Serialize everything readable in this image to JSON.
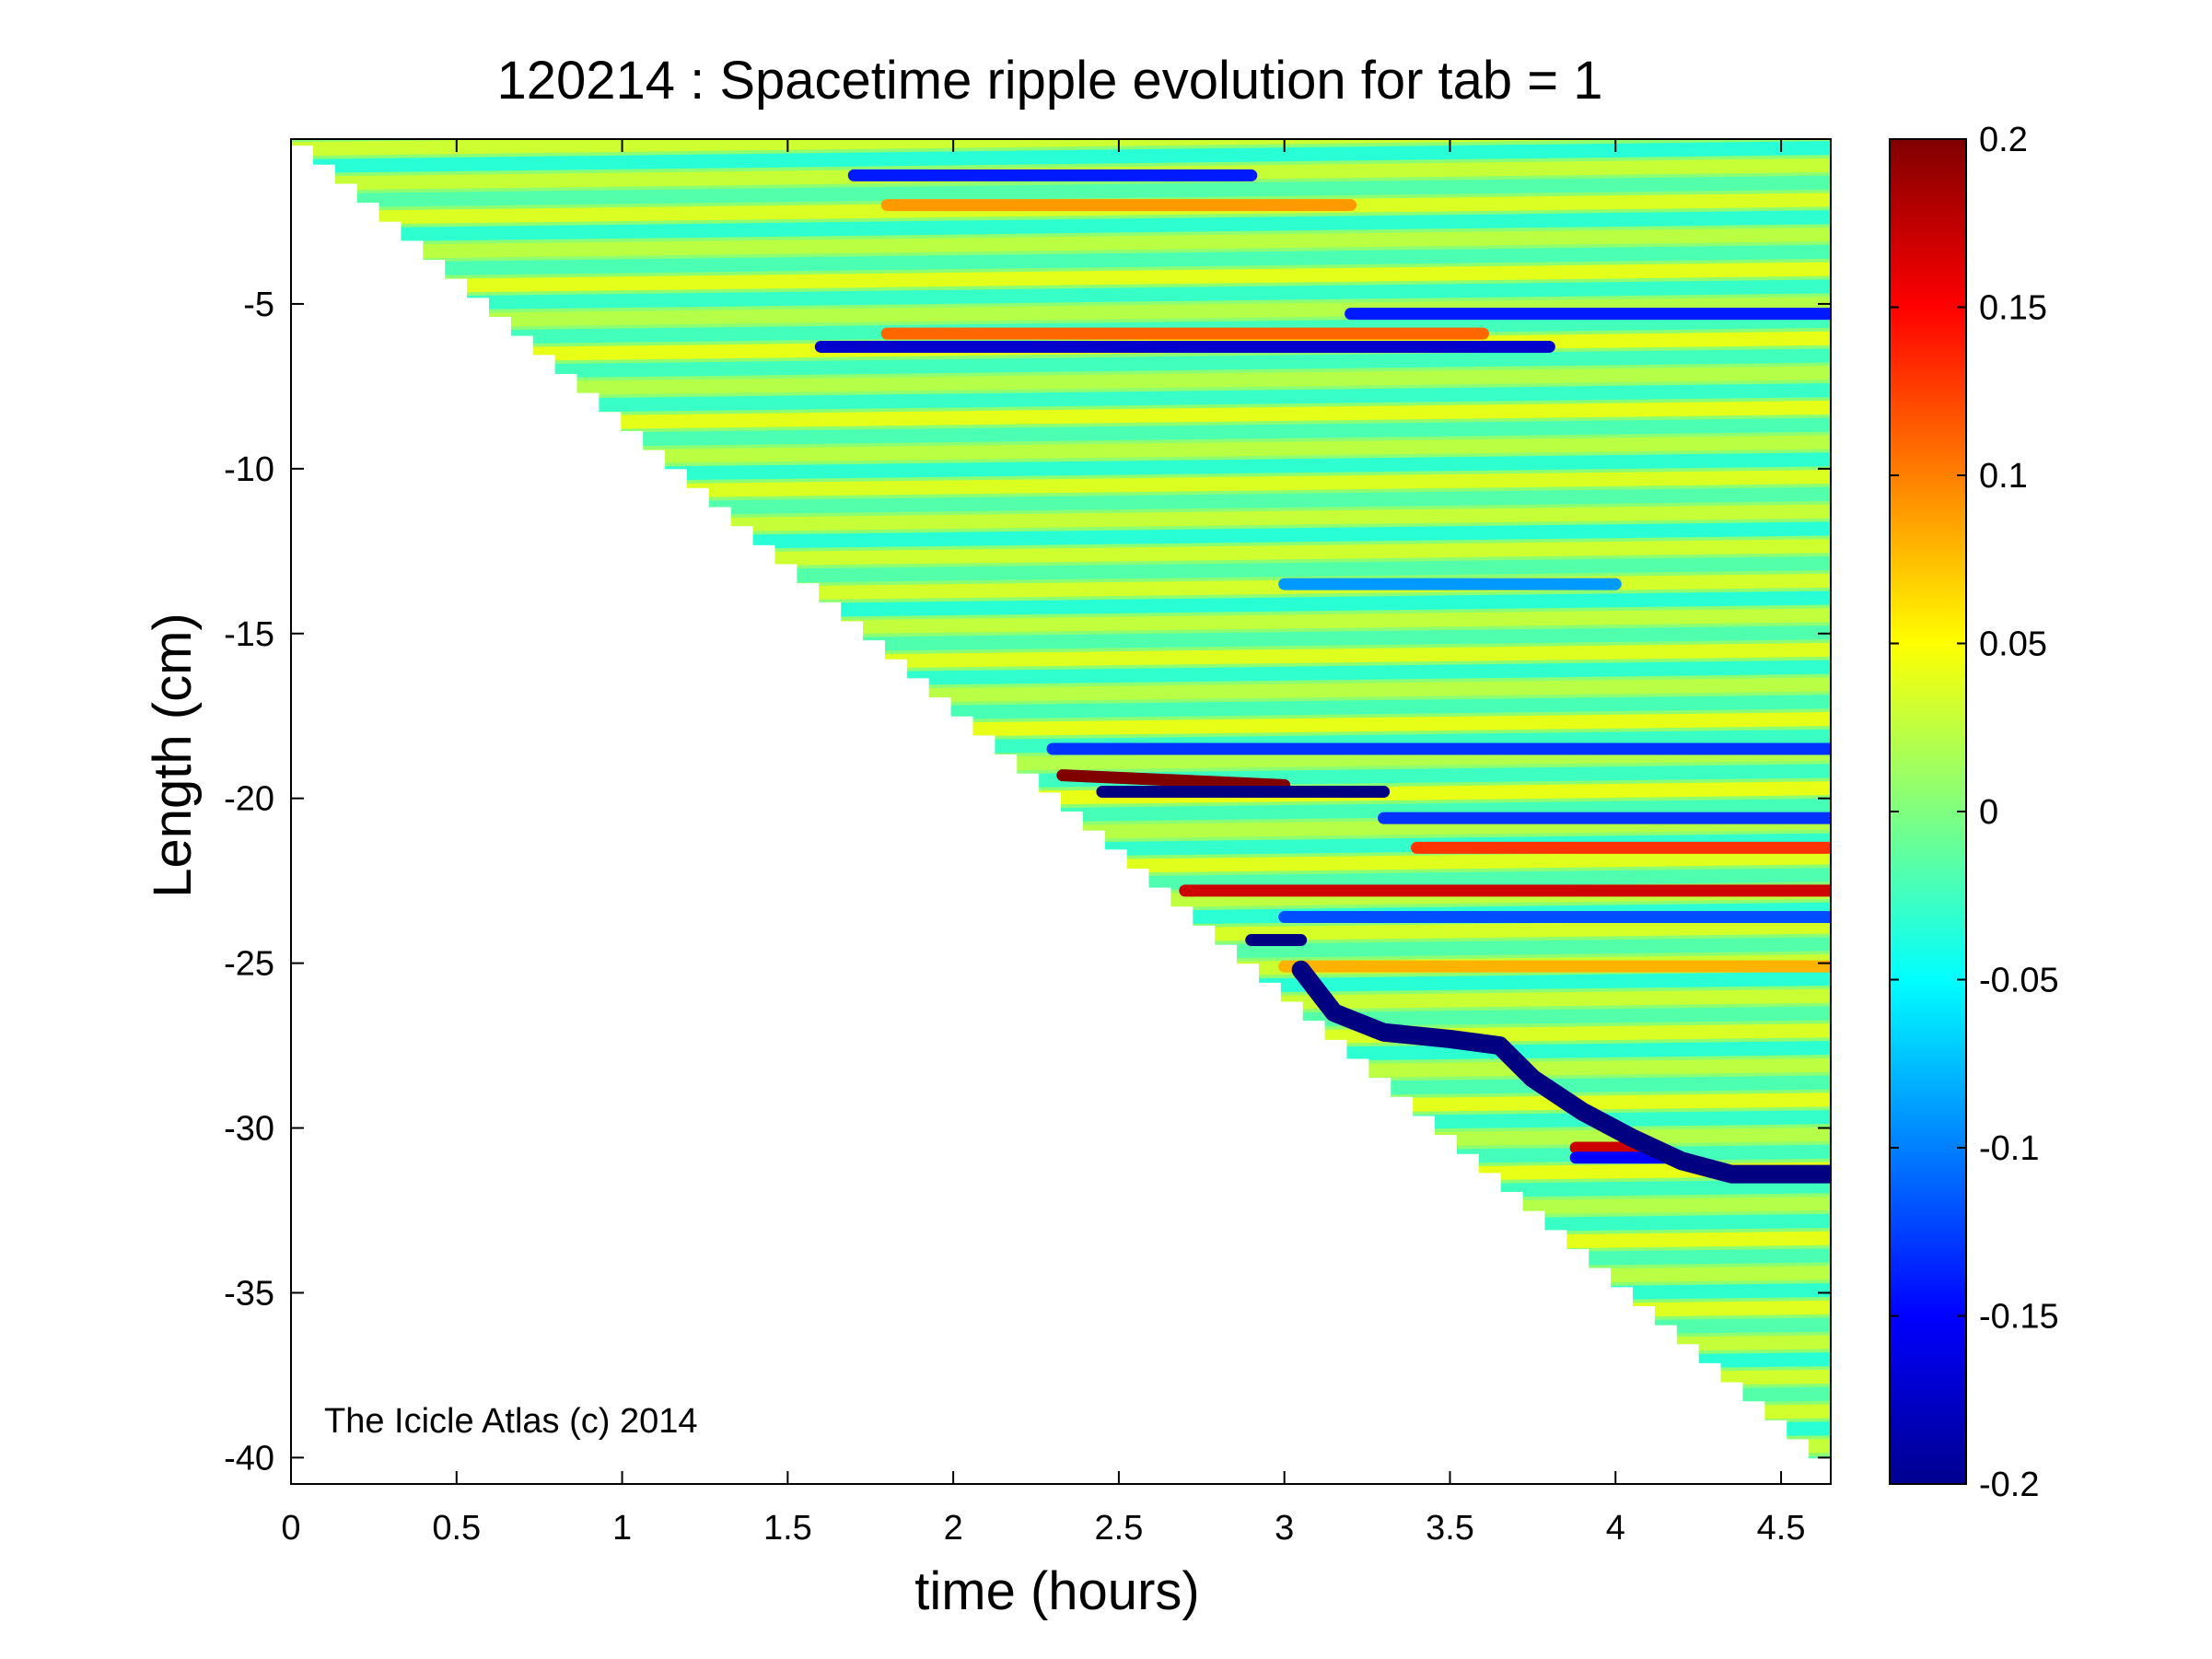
{
  "chart_data": {
    "type": "heatmap",
    "title": "120214 : Spacetime ripple evolution for tab = 1",
    "xlabel": "time (hours)",
    "ylabel": "Length (cm)",
    "xlim": [
      0,
      4.65
    ],
    "ylim": [
      -40.8,
      0
    ],
    "x_ticks": [
      0,
      0.5,
      1,
      1.5,
      2,
      2.5,
      3,
      3.5,
      4,
      4.5
    ],
    "x_tick_labels": [
      "0",
      "0.5",
      "1",
      "1.5",
      "2",
      "2.5",
      "3",
      "3.5",
      "4",
      "4.5"
    ],
    "y_ticks": [
      -5,
      -10,
      -15,
      -20,
      -25,
      -30,
      -35,
      -40
    ],
    "y_tick_labels": [
      "-5",
      "-10",
      "-15",
      "-20",
      "-25",
      "-30",
      "-35",
      "-40"
    ],
    "colorbar": {
      "colormap": "jet",
      "clim": [
        -0.2,
        0.2
      ],
      "ticks": [
        0.2,
        0.15,
        0.1,
        0.05,
        0,
        -0.05,
        -0.1,
        -0.15,
        -0.2
      ],
      "tick_labels": [
        "0.2",
        "0.15",
        "0.1",
        "0.05",
        "0",
        "-0.05",
        "-0.1",
        "-0.15",
        "-0.2"
      ]
    },
    "growth_front": [
      [
        0,
        -0.2
      ],
      [
        4.65,
        -40.6
      ]
    ],
    "background_ripple": {
      "amplitude": 0.045,
      "spacing_cm": 1.05,
      "drift_cm_per_hour": 0.12
    },
    "features": [
      {
        "x": [
          1.7,
          2.9
        ],
        "y": [
          -1.1,
          -1.1
        ],
        "value": -0.14
      },
      {
        "x": [
          1.8,
          3.2
        ],
        "y": [
          -2.0,
          -2.0
        ],
        "value": 0.09
      },
      {
        "x": [
          3.2,
          4.65
        ],
        "y": [
          -5.3,
          -5.3
        ],
        "value": -0.14
      },
      {
        "x": [
          1.6,
          3.8
        ],
        "y": [
          -6.3,
          -6.3
        ],
        "value": -0.17
      },
      {
        "x": [
          1.8,
          3.6
        ],
        "y": [
          -5.9,
          -5.9
        ],
        "value": 0.11
      },
      {
        "x": [
          3.0,
          4.0
        ],
        "y": [
          -13.5,
          -13.5
        ],
        "value": -0.09
      },
      {
        "x": [
          2.3,
          4.65
        ],
        "y": [
          -18.5,
          -18.5
        ],
        "value": -0.13
      },
      {
        "x": [
          2.33,
          3.0
        ],
        "y": [
          -19.3,
          -19.6
        ],
        "value": 0.2
      },
      {
        "x": [
          2.45,
          3.3
        ],
        "y": [
          -19.8,
          -19.8
        ],
        "value": -0.2
      },
      {
        "x": [
          3.3,
          4.65
        ],
        "y": [
          -20.6,
          -20.6
        ],
        "value": -0.13
      },
      {
        "x": [
          3.4,
          4.65
        ],
        "y": [
          -21.5,
          -21.5
        ],
        "value": 0.13
      },
      {
        "x": [
          2.7,
          4.65
        ],
        "y": [
          -22.8,
          -22.8
        ],
        "value": 0.17
      },
      {
        "x": [
          3.0,
          4.65
        ],
        "y": [
          -23.6,
          -23.6
        ],
        "value": -0.12
      },
      {
        "x": [
          3.0,
          4.65
        ],
        "y": [
          -25.1,
          -25.1
        ],
        "value": 0.08
      },
      {
        "x": [
          2.9,
          3.05
        ],
        "y": [
          -24.3,
          -24.3
        ],
        "value": -0.2
      },
      {
        "x": [
          3.88,
          4.12
        ],
        "y": [
          -30.6,
          -30.6
        ],
        "value": 0.17
      },
      {
        "x": [
          3.88,
          4.15
        ],
        "y": [
          -30.9,
          -30.9
        ],
        "value": -0.15
      }
    ],
    "main_ridge": {
      "value": -0.2,
      "points": [
        [
          3.05,
          -25.2
        ],
        [
          3.15,
          -26.5
        ],
        [
          3.3,
          -27.1
        ],
        [
          3.5,
          -27.3
        ],
        [
          3.65,
          -27.5
        ],
        [
          3.75,
          -28.5
        ],
        [
          3.9,
          -29.5
        ],
        [
          4.05,
          -30.3
        ],
        [
          4.2,
          -31.0
        ],
        [
          4.35,
          -31.4
        ],
        [
          4.65,
          -31.4
        ]
      ]
    },
    "annotation": "The Icicle Atlas (c) 2014"
  }
}
